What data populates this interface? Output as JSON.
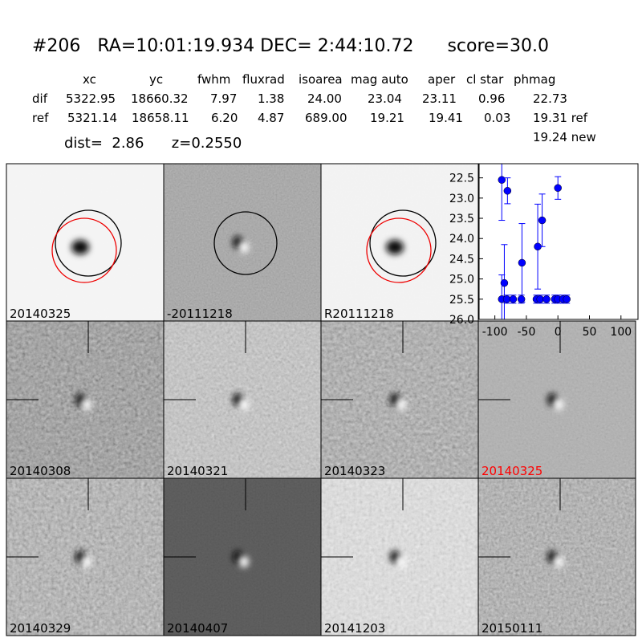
{
  "header": {
    "title": "#206   RA=10:01:19.934 DEC= 2:44:10.72      score=30.0"
  },
  "table": {
    "columns": [
      "xc",
      "yc",
      "fwhm",
      "fluxrad",
      "isoarea",
      "mag auto",
      "aper",
      "cl star",
      "phmag"
    ],
    "rows": [
      [
        "dif",
        "5322.95",
        "18660.32",
        "7.97",
        "1.38",
        "24.00",
        "23.04",
        "23.11",
        "0.96",
        "22.73"
      ],
      [
        "ref",
        "5321.14",
        "18658.11",
        "6.20",
        "4.87",
        "689.00",
        "19.21",
        "19.41",
        "0.03",
        "19.31 ref"
      ]
    ],
    "extra": "19.24 new",
    "summary": "dist=  2.86      z=0.2550"
  },
  "stamps": [
    {
      "label": "20140325"
    },
    {
      "label": "-20111218"
    },
    {
      "label": "R20111218"
    },
    {
      "label": "20140308"
    },
    {
      "label": "20140321"
    },
    {
      "label": "20140323"
    },
    {
      "label": "20140325",
      "color": "#ff0000"
    },
    {
      "label": "20140329"
    },
    {
      "label": "20140407"
    },
    {
      "label": "20141203"
    },
    {
      "label": "20150111"
    }
  ],
  "chart_data": {
    "type": "scatter",
    "color": "#0000ff",
    "x": [
      -89,
      -80,
      -85,
      -57,
      -32,
      -25,
      0,
      -89,
      -81,
      -71,
      -58,
      -34,
      -28,
      -18,
      -5,
      0,
      8,
      14
    ],
    "values": [
      22.55,
      22.82,
      25.1,
      24.6,
      24.2,
      23.55,
      22.75,
      25.5,
      25.5,
      25.5,
      25.5,
      25.5,
      25.5,
      25.5,
      25.5,
      25.5,
      25.5,
      25.5
    ],
    "errors": [
      1.0,
      0.32,
      0.95,
      0.97,
      1.05,
      0.65,
      0.28,
      0.6,
      0.1,
      0.1,
      0.1,
      0.1,
      0.1,
      0.1,
      0.1,
      0.1,
      0.1,
      0.1
    ],
    "xlim": [
      -125,
      127
    ],
    "ylim": [
      26.0,
      22.15
    ],
    "xticks": [
      -100,
      -50,
      0,
      50,
      100
    ],
    "yticks": [
      22.5,
      {
        "value": 23.0,
        "label": "23.0"
      },
      23.5,
      {
        "value": 24.0,
        "label": "24.0"
      },
      24.5,
      {
        "value": 25.0,
        "label": "25.0"
      },
      25.5,
      {
        "value": 26.0,
        "label": "26.0"
      }
    ]
  }
}
